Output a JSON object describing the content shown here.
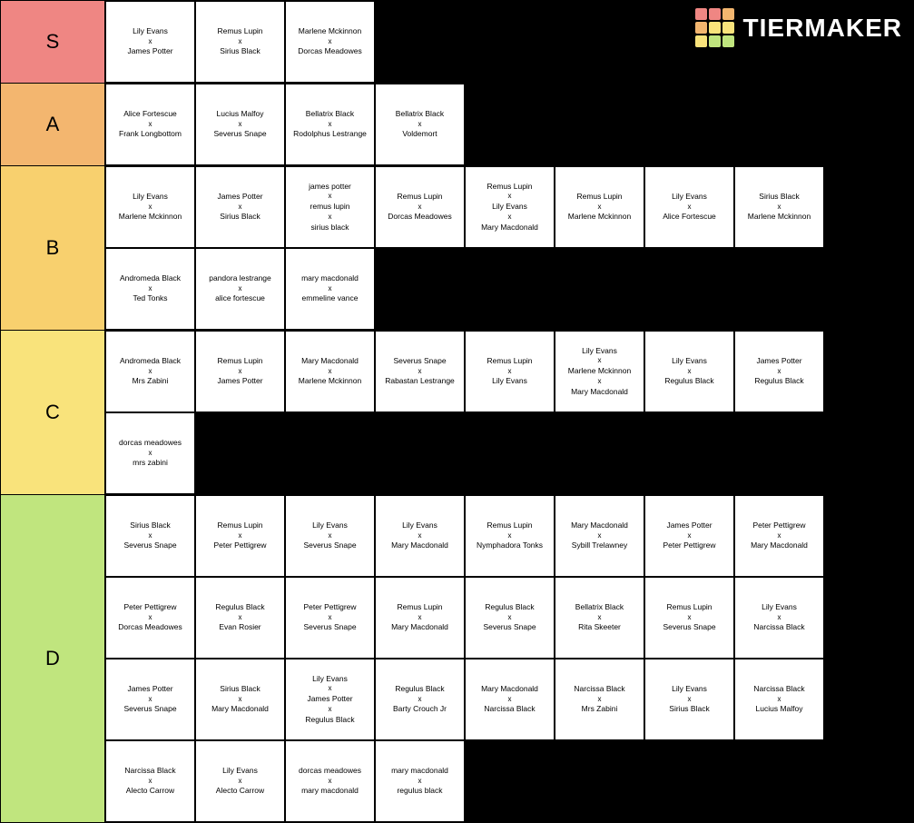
{
  "brand": {
    "name": "TIERMAKER"
  },
  "logo_colors": [
    "#ef8683",
    "#ef8683",
    "#f3b66f",
    "#f3b66f",
    "#f9e37b",
    "#f9e37b",
    "#f9e37b",
    "#c0e57e",
    "#c0e57e"
  ],
  "tiers": [
    {
      "label": "S",
      "color": "#ef8683",
      "items": [
        [
          "Lily Evans",
          "James Potter"
        ],
        [
          "Remus Lupin",
          "Sirius Black"
        ],
        [
          "Marlene Mckinnon",
          "Dorcas Meadowes"
        ]
      ]
    },
    {
      "label": "A",
      "color": "#f3b66f",
      "items": [
        [
          "Alice Fortescue",
          "Frank Longbottom"
        ],
        [
          "Lucius Malfoy",
          "Severus Snape"
        ],
        [
          "Bellatrix Black",
          "Rodolphus Lestrange"
        ],
        [
          "Bellatrix Black",
          "Voldemort"
        ]
      ]
    },
    {
      "label": "B",
      "color": "#f8d06e",
      "items": [
        [
          "Lily Evans",
          "Marlene Mckinnon"
        ],
        [
          "James Potter",
          "Sirius Black"
        ],
        [
          "james potter",
          "remus lupin",
          "sirius black"
        ],
        [
          "Remus Lupin",
          "Dorcas Meadowes"
        ],
        [
          "Remus Lupin",
          "Lily Evans",
          "Mary Macdonald"
        ],
        [
          "Remus Lupin",
          "Marlene Mckinnon"
        ],
        [
          "Lily Evans",
          "Alice Fortescue"
        ],
        [
          "Sirius Black",
          "Marlene Mckinnon"
        ],
        [
          "Andromeda Black",
          "Ted Tonks"
        ],
        [
          "pandora lestrange",
          "alice fortescue"
        ],
        [
          "mary macdonald",
          "emmeline vance"
        ]
      ]
    },
    {
      "label": "C",
      "color": "#f9e37b",
      "items": [
        [
          "Andromeda Black",
          "Mrs Zabini"
        ],
        [
          "Remus Lupin",
          "James Potter"
        ],
        [
          "Mary Macdonald",
          "Marlene Mckinnon"
        ],
        [
          "Severus Snape",
          "Rabastan Lestrange"
        ],
        [
          "Remus Lupin",
          "Lily Evans"
        ],
        [
          "Lily Evans",
          "Marlene Mckinnon",
          "Mary Macdonald"
        ],
        [
          "Lily Evans",
          "Regulus Black"
        ],
        [
          "James Potter",
          "Regulus Black"
        ],
        [
          "dorcas meadowes",
          "mrs zabini"
        ]
      ]
    },
    {
      "label": "D",
      "color": "#c0e57e",
      "items": [
        [
          "Sirius Black",
          "Severus Snape"
        ],
        [
          "Remus Lupin",
          "Peter Pettigrew"
        ],
        [
          "Lily Evans",
          "Severus Snape"
        ],
        [
          "Lily Evans",
          "Mary Macdonald"
        ],
        [
          "Remus Lupin",
          "Nymphadora Tonks"
        ],
        [
          "Mary Macdonald",
          "Sybill Trelawney"
        ],
        [
          "James Potter",
          "Peter Pettigrew"
        ],
        [
          "Peter Pettigrew",
          "Mary Macdonald"
        ],
        [
          "Peter Pettigrew",
          "Dorcas Meadowes"
        ],
        [
          "Regulus Black",
          "Evan Rosier"
        ],
        [
          "Peter Pettigrew",
          "Severus Snape"
        ],
        [
          "Remus Lupin",
          "Mary Macdonald"
        ],
        [
          "Regulus Black",
          "Severus Snape"
        ],
        [
          "Bellatrix Black",
          "Rita Skeeter"
        ],
        [
          "Remus Lupin",
          "Severus Snape"
        ],
        [
          "Lily Evans",
          "Narcissa Black"
        ],
        [
          "James Potter",
          "Severus Snape"
        ],
        [
          "Sirius Black",
          "Mary Macdonald"
        ],
        [
          "Lily Evans",
          "James Potter",
          "Regulus Black"
        ],
        [
          "Regulus Black",
          "Barty Crouch Jr"
        ],
        [
          "Mary Macdonald",
          "Narcissa Black"
        ],
        [
          "Narcissa Black",
          "Mrs Zabini"
        ],
        [
          "Lily Evans",
          "Sirius Black"
        ],
        [
          "Narcissa Black",
          "Lucius Malfoy"
        ],
        [
          "Narcissa Black",
          "Alecto Carrow"
        ],
        [
          "Lily Evans",
          "Alecto Carrow"
        ],
        [
          "dorcas meadowes",
          "mary macdonald"
        ],
        [
          "mary macdonald",
          "regulus black"
        ]
      ]
    }
  ]
}
